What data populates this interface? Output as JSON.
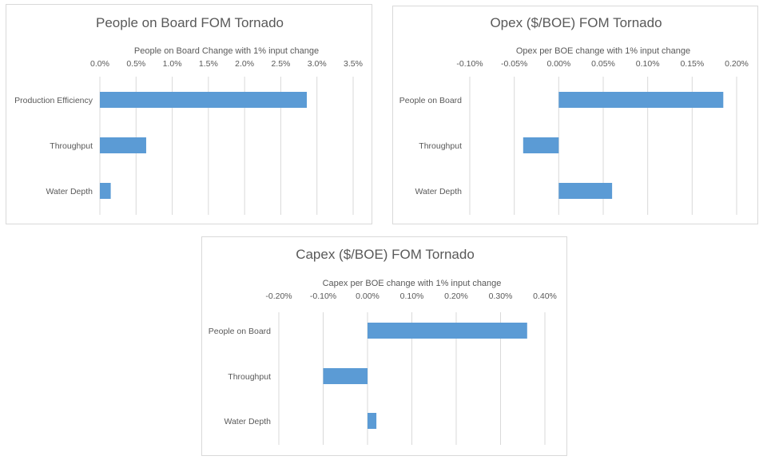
{
  "chart_data": [
    {
      "type": "bar",
      "orientation": "horizontal",
      "title": "People on Board FOM Tornado",
      "xlabel": "People on Board Change with 1% input change",
      "ylabel": "",
      "categories": [
        "Production Efficiency",
        "Throughput",
        "Water Depth"
      ],
      "values": [
        2.86,
        0.64,
        0.15
      ],
      "unit": "%",
      "xlim": [
        0,
        3.5
      ],
      "ticks": [
        0,
        0.5,
        1.0,
        1.5,
        2.0,
        2.5,
        3.0,
        3.5
      ],
      "tick_labels": [
        "0.0%",
        "0.5%",
        "1.0%",
        "1.5%",
        "2.0%",
        "2.5%",
        "3.0%",
        "3.5%"
      ],
      "grid": true,
      "color": "#5b9bd5"
    },
    {
      "type": "bar",
      "orientation": "horizontal",
      "title": "Opex ($/BOE) FOM Tornado",
      "xlabel": "Opex per BOE change with 1% input change",
      "ylabel": "",
      "categories": [
        "People on Board",
        "Throughput",
        "Water Depth"
      ],
      "values": [
        0.185,
        -0.04,
        0.06
      ],
      "unit": "%",
      "xlim": [
        -0.1,
        0.2
      ],
      "ticks": [
        -0.1,
        -0.05,
        0,
        0.05,
        0.1,
        0.15,
        0.2
      ],
      "tick_labels": [
        "-0.10%",
        "-0.05%",
        "0.00%",
        "0.05%",
        "0.10%",
        "0.15%",
        "0.20%"
      ],
      "grid": true,
      "color": "#5b9bd5"
    },
    {
      "type": "bar",
      "orientation": "horizontal",
      "title": "Capex ($/BOE) FOM Tornado",
      "xlabel": "Capex per BOE change with 1% input change",
      "ylabel": "",
      "categories": [
        "People on Board",
        "Throughput",
        "Water Depth"
      ],
      "values": [
        0.36,
        -0.1,
        0.02
      ],
      "unit": "%",
      "xlim": [
        -0.2,
        0.4
      ],
      "ticks": [
        -0.2,
        -0.1,
        0,
        0.1,
        0.2,
        0.3,
        0.4
      ],
      "tick_labels": [
        "-0.20%",
        "-0.10%",
        "0.00%",
        "0.10%",
        "0.20%",
        "0.30%",
        "0.40%"
      ],
      "grid": true,
      "color": "#5b9bd5"
    }
  ]
}
